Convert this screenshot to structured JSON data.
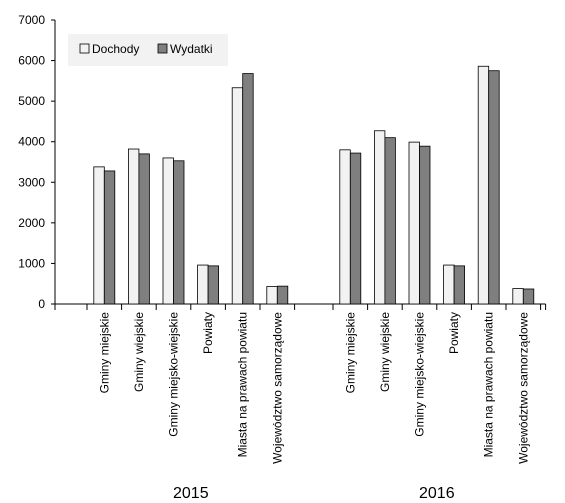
{
  "chart_data": {
    "type": "bar",
    "groups": [
      {
        "label": "2015",
        "categories": [
          "Gminy miejskie",
          "Gminy wiejskie",
          "Gminy miejsko-wiejskie",
          "Powiaty",
          "Miasta na prawach powiatu",
          "Województwo samorządowe"
        ],
        "series": [
          {
            "name": "Dochody",
            "values": [
              3380,
              3820,
              3600,
              960,
              5330,
              430
            ]
          },
          {
            "name": "Wydatki",
            "values": [
              3280,
              3700,
              3530,
              940,
              5680,
              440
            ]
          }
        ]
      },
      {
        "label": "2016",
        "categories": [
          "Gminy miejskie",
          "Gminy wiejskie",
          "Gminy miejsko-wiejskie",
          "Powiaty",
          "Miasta na prawach powiatu",
          "Województwo samorządowe"
        ],
        "series": [
          {
            "name": "Dochody",
            "values": [
              3800,
              4270,
              3990,
              960,
              5860,
              380
            ]
          },
          {
            "name": "Wydatki",
            "values": [
              3720,
              4100,
              3890,
              940,
              5750,
              370
            ]
          }
        ]
      }
    ],
    "legend": {
      "entries": [
        "Dochody",
        "Wydatki"
      ],
      "placement": "top-left"
    },
    "colors": {
      "Dochody": "#f2f2f2",
      "Wydatki": "#7f7f7f"
    },
    "ylim": [
      0,
      7000
    ],
    "yticks": [
      0,
      1000,
      2000,
      3000,
      4000,
      5000,
      6000,
      7000
    ],
    "grid": false
  }
}
